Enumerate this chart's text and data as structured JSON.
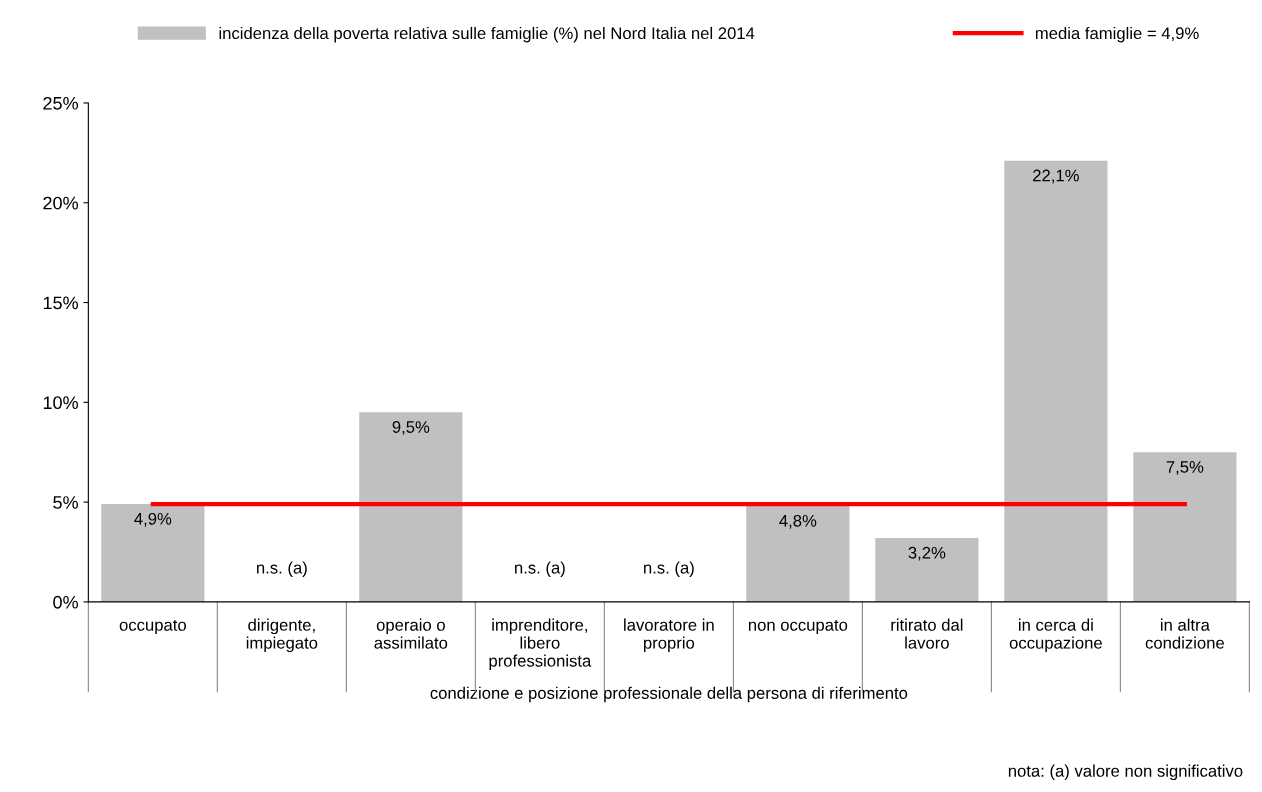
{
  "chart_data": {
    "type": "bar",
    "categories": [
      "occupato",
      "dirigente,\nimpiegato",
      "operaio o\nassimilato",
      "imprenditore,\nlibero\nprofessionista",
      "lavoratore in\nproprio",
      "non occupato",
      "ritirato dal\nlavoro",
      "in cerca di\noccupazione",
      "in altra\ncondizione"
    ],
    "series": [
      {
        "name": "incidenza della poverta relativa sulle famiglie (%) nel Nord Italia nel 2014",
        "color": "#c0c0c0",
        "values": [
          4.9,
          null,
          9.5,
          null,
          null,
          4.8,
          3.2,
          22.1,
          7.5
        ],
        "value_labels": [
          "4,9%",
          "n.s. (a)",
          "9,5%",
          "n.s. (a)",
          "n.s. (a)",
          "4,8%",
          "3,2%",
          "22,1%",
          "7,5%"
        ]
      },
      {
        "name": "media famiglie = 4,9%",
        "type": "line",
        "color": "#ff0000",
        "values": [
          4.9,
          4.9,
          4.9,
          4.9,
          4.9,
          4.9,
          4.9,
          4.9,
          4.9
        ]
      }
    ],
    "xlabel": "condizione e posizione professionale della persona di riferimento",
    "annotations": [
      "nota: (a) valore non significativo"
    ],
    "ylim": [
      0,
      25
    ],
    "yticks": [
      {
        "value": 0,
        "label": "0%"
      },
      {
        "value": 5,
        "label": "5%"
      },
      {
        "value": 10,
        "label": "10%"
      },
      {
        "value": 15,
        "label": "15%"
      },
      {
        "value": 20,
        "label": "20%"
      },
      {
        "value": 25,
        "label": "25%"
      }
    ],
    "grid": false,
    "legend": "top"
  }
}
